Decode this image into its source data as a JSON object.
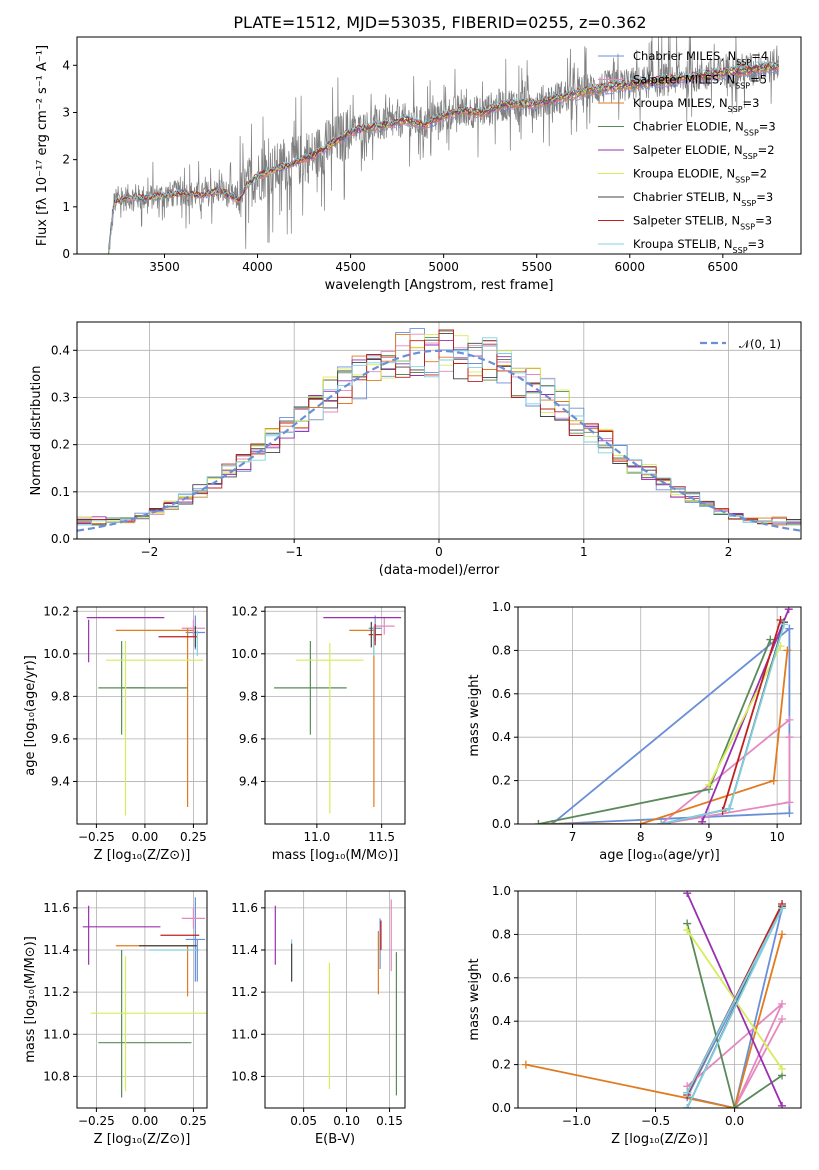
{
  "figure": {
    "title": "PLATE=1512, MJD=53035, FIBERID=0255, z=0.362",
    "colors": {
      "Chabrier MILES": "#6a8fd8",
      "Salpeter MILES": "#e588c0",
      "Kroupa MILES": "#e07b20",
      "Chabrier ELODIE": "#5a8a5a",
      "Salpeter ELODIE": "#9a30b0",
      "Kroupa ELODIE": "#d8ec5a",
      "Chabrier STELIB": "#444444",
      "Salpeter STELIB": "#c02020",
      "Kroupa STELIB": "#80d0e0",
      "data": "#7f7f7f"
    }
  },
  "chart_data": [
    {
      "id": "spectrum",
      "type": "line",
      "xlabel": "wavelength [Angstrom, rest frame]",
      "ylabel": "Flux [fλ 10⁻¹⁷ erg cm⁻² s⁻¹ A⁻¹]",
      "xlim": [
        3030,
        6920
      ],
      "ylim": [
        0,
        4.6
      ],
      "xticks": [
        "3500",
        "4000",
        "4500",
        "5000",
        "5500",
        "6000",
        "6500"
      ],
      "yticks": [
        "0",
        "1",
        "2",
        "3",
        "4"
      ],
      "legend_position": "top-right",
      "legend": [
        "Chabrier MILES, N_SSP=4",
        "Salpeter MILES, N_SSP=5",
        "Kroupa MILES, N_SSP=3",
        "Chabrier ELODIE, N_SSP=3",
        "Salpeter ELODIE, N_SSP=2",
        "Kroupa ELODIE, N_SSP=2",
        "Chabrier STELIB, N_SSP=3",
        "Salpeter STELIB, N_SSP=3",
        "Kroupa STELIB, N_SSP=3"
      ],
      "continuum": {
        "x": [
          3200,
          3230,
          3300,
          3400,
          3500,
          3600,
          3700,
          3800,
          3900,
          3950,
          4000,
          4100,
          4200,
          4300,
          4400,
          4500,
          4600,
          4700,
          4800,
          4900,
          5000,
          5100,
          5200,
          5300,
          5400,
          5500,
          5600,
          5700,
          5800,
          5900,
          6000,
          6100,
          6200,
          6300,
          6400,
          6500,
          6600,
          6700,
          6800
        ],
        "y": [
          0.05,
          1.1,
          1.2,
          1.2,
          1.25,
          1.3,
          1.25,
          1.35,
          1.15,
          1.5,
          1.65,
          1.8,
          1.95,
          2.1,
          2.35,
          2.6,
          2.7,
          2.75,
          2.85,
          2.75,
          2.95,
          3.05,
          3.0,
          3.15,
          3.2,
          3.2,
          3.3,
          3.4,
          3.5,
          3.55,
          3.6,
          3.65,
          3.7,
          3.75,
          3.8,
          3.85,
          3.9,
          3.95,
          4.0
        ]
      }
    },
    {
      "id": "residuals",
      "type": "line",
      "xlabel": "(data-model)/error",
      "ylabel": "Normed distribution",
      "xlim": [
        -2.5,
        2.5
      ],
      "ylim": [
        0,
        0.46
      ],
      "xticks": [
        "−2",
        "−1",
        "0",
        "1",
        "2"
      ],
      "yticks": [
        "0.0",
        "0.1",
        "0.2",
        "0.3",
        "0.4"
      ],
      "legend_position": "top-right",
      "legend": [
        "𝒩(0, 1)"
      ]
    },
    {
      "id": "age-vs-Z",
      "type": "scatter",
      "xlabel": "Z [log₁₀(Z/Z⊙)]",
      "ylabel": "age  [log₁₀(age/yr)]",
      "xlim": [
        -0.35,
        0.32
      ],
      "ylim": [
        9.2,
        10.22
      ],
      "xticks": [
        "−0.25",
        "0.00",
        "0.25"
      ],
      "yticks": [
        "9.4",
        "9.6",
        "9.8",
        "10.0",
        "10.2"
      ],
      "points": [
        {
          "model": "Chabrier MILES",
          "x": 0.26,
          "y": 10.1,
          "xerr": 0.05,
          "yerr": 0.08
        },
        {
          "model": "Salpeter MILES",
          "x": 0.25,
          "y": 10.12,
          "xerr": 0.06,
          "yerr": 0.04
        },
        {
          "model": "Kroupa MILES",
          "x": 0.05,
          "y": 10.11,
          "xerr": 0.2,
          "yerr": 0.0
        },
        {
          "model": "Kroupa MILES",
          "x": 0.22,
          "y": 9.7,
          "xerr": 0.0,
          "yerr": 0.42
        },
        {
          "model": "Chabrier ELODIE",
          "x": -0.12,
          "y": 9.84,
          "xerr": 0.12,
          "yerr": 0.22
        },
        {
          "model": "Chabrier ELODIE",
          "x": 0.05,
          "y": 9.84,
          "xerr": 0.17,
          "yerr": 0.0
        },
        {
          "model": "Salpeter ELODIE",
          "x": -0.1,
          "y": 10.17,
          "xerr": 0.2,
          "yerr": 0.0
        },
        {
          "model": "Salpeter ELODIE",
          "x": -0.29,
          "y": 10.06,
          "xerr": 0.0,
          "yerr": 0.1
        },
        {
          "model": "Kroupa ELODIE",
          "x": 0.05,
          "y": 9.97,
          "xerr": 0.25,
          "yerr": 0.0
        },
        {
          "model": "Kroupa ELODIE",
          "x": -0.1,
          "y": 9.65,
          "xerr": 0.0,
          "yerr": 0.41
        },
        {
          "model": "Chabrier STELIB",
          "x": 0.26,
          "y": 10.08,
          "xerr": 0.0,
          "yerr": 0.05
        },
        {
          "model": "Salpeter STELIB",
          "x": 0.17,
          "y": 10.08,
          "xerr": 0.1,
          "yerr": 0.0
        },
        {
          "model": "Kroupa STELIB",
          "x": 0.27,
          "y": 10.05,
          "xerr": 0.0,
          "yerr": 0.06
        }
      ]
    },
    {
      "id": "age-vs-mass",
      "type": "scatter",
      "xlabel": "mass [log₁₀(M/M⊙)]",
      "ylabel": "",
      "xlim": [
        10.6,
        11.68
      ],
      "ylim": [
        9.2,
        10.22
      ],
      "xticks": [
        "11.0",
        "11.5"
      ],
      "yticks": [
        "9.4",
        "9.6",
        "9.8",
        "10.0",
        "10.2"
      ],
      "points": [
        {
          "model": "Chabrier MILES",
          "x": 11.45,
          "y": 10.12,
          "xerr": 0.05,
          "yerr": 0.06
        },
        {
          "model": "Salpeter MILES",
          "x": 11.52,
          "y": 10.13,
          "xerr": 0.08,
          "yerr": 0.04
        },
        {
          "model": "Kroupa MILES",
          "x": 11.44,
          "y": 9.7,
          "xerr": 0.0,
          "yerr": 0.42
        },
        {
          "model": "Kroupa MILES",
          "x": 11.35,
          "y": 10.11,
          "xerr": 0.1,
          "yerr": 0.0
        },
        {
          "model": "Chabrier ELODIE",
          "x": 10.95,
          "y": 9.84,
          "xerr": 0.28,
          "yerr": 0.22
        },
        {
          "model": "Salpeter ELODIE",
          "x": 11.35,
          "y": 10.17,
          "xerr": 0.3,
          "yerr": 0.0
        },
        {
          "model": "Kroupa ELODIE",
          "x": 11.1,
          "y": 9.97,
          "xerr": 0.26,
          "yerr": 0.0
        },
        {
          "model": "Kroupa ELODIE",
          "x": 11.1,
          "y": 9.65,
          "xerr": 0.0,
          "yerr": 0.4
        },
        {
          "model": "Chabrier STELIB",
          "x": 11.42,
          "y": 10.09,
          "xerr": 0.0,
          "yerr": 0.06
        },
        {
          "model": "Salpeter STELIB",
          "x": 11.45,
          "y": 10.09,
          "xerr": 0.05,
          "yerr": 0.05
        },
        {
          "model": "Kroupa STELIB",
          "x": 11.44,
          "y": 10.06,
          "xerr": 0.0,
          "yerr": 0.07
        }
      ]
    },
    {
      "id": "weight-vs-age",
      "type": "line",
      "xlabel": "age  [log₁₀(age/yr)]",
      "ylabel": "mass weight",
      "xlim": [
        6.2,
        10.35
      ],
      "ylim": [
        0,
        1
      ],
      "xticks": [
        "7",
        "8",
        "9",
        "10"
      ],
      "yticks": [
        "0.0",
        "0.2",
        "0.4",
        "0.6",
        "0.8",
        "1.0"
      ],
      "series": [
        {
          "model": "Chabrier MILES",
          "x": [
            10.18,
            6.7,
            10.18,
            10.18
          ],
          "y": [
            0.9,
            0.0,
            0.05,
            0.9
          ]
        },
        {
          "model": "Salpeter MILES",
          "x": [
            10.18,
            8.3,
            10.18,
            10.18
          ],
          "y": [
            0.48,
            0.0,
            0.1,
            0.4
          ]
        },
        {
          "model": "Kroupa MILES",
          "x": [
            6.5,
            8.0,
            9.95,
            10.15
          ],
          "y": [
            0.0,
            0.0,
            0.2,
            0.8
          ]
        },
        {
          "model": "Chabrier ELODIE",
          "x": [
            6.5,
            9.0,
            9.9
          ],
          "y": [
            0.0,
            0.16,
            0.85
          ]
        },
        {
          "model": "Salpeter ELODIE",
          "x": [
            8.9,
            10.17
          ],
          "y": [
            0.01,
            0.99
          ]
        },
        {
          "model": "Kroupa ELODIE",
          "x": [
            9.0,
            10.05
          ],
          "y": [
            0.18,
            0.82
          ]
        },
        {
          "model": "Chabrier STELIB",
          "x": [
            8.3,
            9.3,
            10.1
          ],
          "y": [
            0.0,
            0.07,
            0.93
          ]
        },
        {
          "model": "Salpeter STELIB",
          "x": [
            9.2,
            10.05
          ],
          "y": [
            0.06,
            0.94
          ]
        },
        {
          "model": "Kroupa STELIB",
          "x": [
            8.3,
            9.3,
            10.1
          ],
          "y": [
            0.0,
            0.07,
            0.92
          ]
        }
      ]
    },
    {
      "id": "mass-vs-Z",
      "type": "scatter",
      "xlabel": "Z [log₁₀(Z/Z⊙)]",
      "ylabel": "mass [log₁₀(M/M⊙)]",
      "xlim": [
        -0.35,
        0.32
      ],
      "ylim": [
        10.65,
        11.68
      ],
      "xticks": [
        "−0.25",
        "0.00",
        "0.25"
      ],
      "yticks": [
        "10.8",
        "11.0",
        "11.2",
        "11.4",
        "11.6"
      ],
      "points": [
        {
          "model": "Chabrier MILES",
          "x": 0.26,
          "y": 11.45,
          "xerr": 0.05,
          "yerr": 0.2
        },
        {
          "model": "Salpeter MILES",
          "x": 0.25,
          "y": 11.55,
          "xerr": 0.06,
          "yerr": 0.05
        },
        {
          "model": "Kroupa MILES",
          "x": 0.05,
          "y": 11.42,
          "xerr": 0.2,
          "yerr": 0.0
        },
        {
          "model": "Kroupa MILES",
          "x": 0.22,
          "y": 11.3,
          "xerr": 0.0,
          "yerr": 0.12
        },
        {
          "model": "Chabrier ELODIE",
          "x": -0.12,
          "y": 11.05,
          "xerr": 0.0,
          "yerr": 0.35
        },
        {
          "model": "Chabrier ELODIE",
          "x": 0.0,
          "y": 10.96,
          "xerr": 0.24,
          "yerr": 0.0
        },
        {
          "model": "Salpeter ELODIE",
          "x": -0.12,
          "y": 11.51,
          "xerr": 0.2,
          "yerr": 0.0
        },
        {
          "model": "Salpeter ELODIE",
          "x": -0.29,
          "y": 11.47,
          "xerr": 0.0,
          "yerr": 0.14
        },
        {
          "model": "Kroupa ELODIE",
          "x": 0.02,
          "y": 11.1,
          "xerr": 0.3,
          "yerr": 0.0
        },
        {
          "model": "Kroupa ELODIE",
          "x": -0.1,
          "y": 11.05,
          "xerr": 0.0,
          "yerr": 0.32
        },
        {
          "model": "Chabrier STELIB",
          "x": 0.12,
          "y": 11.42,
          "xerr": 0.15,
          "yerr": 0.0
        },
        {
          "model": "Salpeter STELIB",
          "x": 0.18,
          "y": 11.47,
          "xerr": 0.1,
          "yerr": 0.0
        },
        {
          "model": "Kroupa STELIB",
          "x": 0.15,
          "y": 11.4,
          "xerr": 0.13,
          "yerr": 0.0
        },
        {
          "model": "Chabrier MILES",
          "x": 0.27,
          "y": 11.35,
          "xerr": 0.0,
          "yerr": 0.1
        }
      ]
    },
    {
      "id": "mass-vs-EBV",
      "type": "scatter",
      "xlabel": "E(B-V)",
      "ylabel": "",
      "xlim": [
        0.005,
        0.168
      ],
      "ylim": [
        10.65,
        11.68
      ],
      "xticks": [
        "0.05",
        "0.10",
        "0.15"
      ],
      "yticks": [
        "10.8",
        "11.0",
        "11.2",
        "11.4",
        "11.6"
      ],
      "points": [
        {
          "model": "Salpeter ELODIE",
          "x": 0.017,
          "y": 11.47,
          "xerr": 0.0,
          "yerr": 0.14
        },
        {
          "model": "Kroupa STELIB",
          "x": 0.036,
          "y": 11.35,
          "xerr": 0.0,
          "yerr": 0.1
        },
        {
          "model": "Chabrier STELIB",
          "x": 0.036,
          "y": 11.34,
          "xerr": 0.0,
          "yerr": 0.09
        },
        {
          "model": "Kroupa ELODIE",
          "x": 0.08,
          "y": 11.04,
          "xerr": 0.0,
          "yerr": 0.3
        },
        {
          "model": "Kroupa MILES",
          "x": 0.137,
          "y": 11.34,
          "xerr": 0.0,
          "yerr": 0.15
        },
        {
          "model": "Chabrier MILES",
          "x": 0.139,
          "y": 11.43,
          "xerr": 0.0,
          "yerr": 0.12
        },
        {
          "model": "Salpeter STELIB",
          "x": 0.14,
          "y": 11.47,
          "xerr": 0.0,
          "yerr": 0.07
        },
        {
          "model": "Salpeter MILES",
          "x": 0.152,
          "y": 11.47,
          "xerr": 0.0,
          "yerr": 0.17
        },
        {
          "model": "Chabrier ELODIE",
          "x": 0.158,
          "y": 11.05,
          "xerr": 0.0,
          "yerr": 0.34
        }
      ]
    },
    {
      "id": "weight-vs-Z",
      "type": "line",
      "xlabel": "Z [log₁₀(Z/Z⊙)]",
      "ylabel": "mass weight",
      "xlim": [
        -1.37,
        0.42
      ],
      "ylim": [
        0,
        1
      ],
      "xticks": [
        "−1.0",
        "−0.5",
        "0.0"
      ],
      "yticks": [
        "0.0",
        "0.2",
        "0.4",
        "0.6",
        "0.8",
        "1.0"
      ],
      "series": [
        {
          "model": "Chabrier MILES",
          "x": [
            -0.3,
            0.3,
            0.0,
            -0.3
          ],
          "y": [
            0.05,
            0.92,
            0.0,
            0.05
          ]
        },
        {
          "model": "Salpeter MILES",
          "x": [
            -0.3,
            0.3,
            0.0,
            0.3
          ],
          "y": [
            0.1,
            0.48,
            0.0,
            0.41
          ]
        },
        {
          "model": "Kroupa MILES",
          "x": [
            -1.32,
            0.0,
            0.3
          ],
          "y": [
            0.2,
            0.0,
            0.8
          ]
        },
        {
          "model": "Chabrier ELODIE",
          "x": [
            -0.3,
            0.0,
            0.3
          ],
          "y": [
            0.85,
            0.0,
            0.15
          ]
        },
        {
          "model": "Salpeter ELODIE",
          "x": [
            -0.3,
            0.3
          ],
          "y": [
            0.99,
            0.01
          ]
        },
        {
          "model": "Kroupa ELODIE",
          "x": [
            -0.3,
            0.3
          ],
          "y": [
            0.82,
            0.18
          ]
        },
        {
          "model": "Chabrier STELIB",
          "x": [
            -0.3,
            0.3,
            -0.3
          ],
          "y": [
            0.07,
            0.93,
            0.0
          ]
        },
        {
          "model": "Salpeter STELIB",
          "x": [
            -0.3,
            0.3
          ],
          "y": [
            0.06,
            0.94
          ]
        },
        {
          "model": "Kroupa STELIB",
          "x": [
            -0.3,
            0.3,
            -0.3
          ],
          "y": [
            0.07,
            0.92,
            0.0
          ]
        }
      ]
    }
  ]
}
